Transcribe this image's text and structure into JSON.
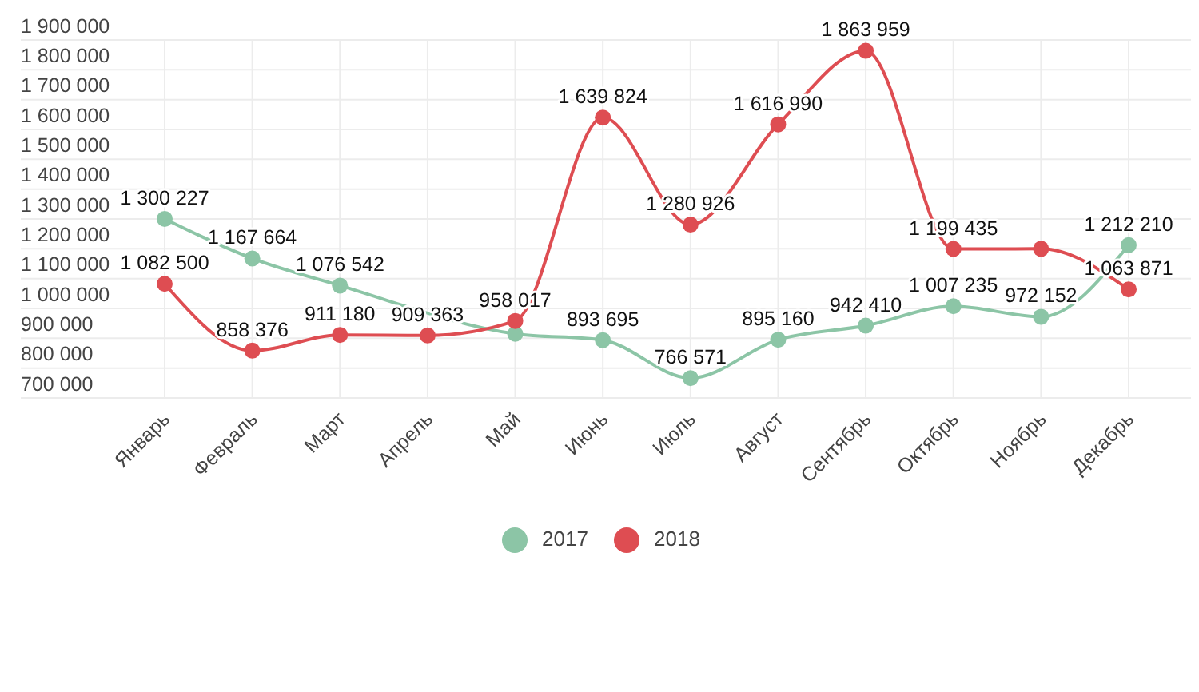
{
  "chart_data": {
    "type": "line",
    "categories": [
      "Январь",
      "Февраль",
      "Март",
      "Апрель",
      "Май",
      "Июнь",
      "Июль",
      "Август",
      "Сентябрь",
      "Октябрь",
      "Ноябрь",
      "Декабрь"
    ],
    "series": [
      {
        "name": "2017",
        "color": "#8cc5a6",
        "values": [
          1300227,
          1167664,
          1076542,
          null,
          915000,
          893695,
          766571,
          895160,
          942410,
          1007235,
          972152,
          1212210
        ],
        "value_labels": [
          "1 300 227",
          "1 167 664",
          "1 076 542",
          null,
          null,
          "893 695",
          "766 571",
          "895 160",
          "942 410",
          "1 007 235",
          "972 152",
          "1 212 210"
        ]
      },
      {
        "name": "2018",
        "color": "#de4d52",
        "values": [
          1082500,
          858376,
          911180,
          909363,
          958017,
          1639824,
          1280926,
          1616990,
          1863959,
          1199435,
          1200000,
          1063871
        ],
        "value_labels": [
          "1 082 500",
          "858 376",
          "911 180",
          "909 363",
          "958 017",
          "1 639 824",
          "1 280 926",
          "1 616 990",
          "1 863 959",
          "1 199 435",
          null,
          "1 063 871"
        ]
      }
    ],
    "ylim": [
      700000,
      1900000
    ],
    "yticks": [
      {
        "value": 700000,
        "label": "700 000"
      },
      {
        "value": 800000,
        "label": "800 000"
      },
      {
        "value": 900000,
        "label": "900 000"
      },
      {
        "value": 1000000,
        "label": "1 000 000"
      },
      {
        "value": 1100000,
        "label": "1 100 000"
      },
      {
        "value": 1200000,
        "label": "1 200 000"
      },
      {
        "value": 1300000,
        "label": "1 300 000"
      },
      {
        "value": 1400000,
        "label": "1 400 000"
      },
      {
        "value": 1500000,
        "label": "1 500 000"
      },
      {
        "value": 1600000,
        "label": "1 600 000"
      },
      {
        "value": 1700000,
        "label": "1 700 000"
      },
      {
        "value": 1800000,
        "label": "1 800 000"
      },
      {
        "value": 1900000,
        "label": "1 900 000"
      }
    ],
    "grid": true,
    "legend": "bottom",
    "marker": "circle",
    "line_style": "solid"
  }
}
